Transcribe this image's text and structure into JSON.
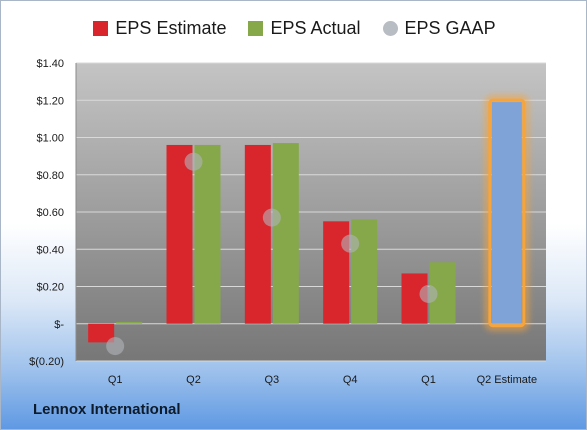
{
  "chart_data": {
    "type": "bar",
    "title": "",
    "xlabel": "",
    "ylabel": "",
    "categories": [
      "Q1",
      "Q2",
      "Q3",
      "Q4",
      "Q1",
      "Q2 Estimate"
    ],
    "ylim": [
      -0.2,
      1.4
    ],
    "yticks": [
      -0.2,
      0,
      0.2,
      0.4,
      0.6,
      0.8,
      1.0,
      1.2,
      1.4
    ],
    "ytick_labels": [
      "$(0.20)",
      "$-",
      "$0.20",
      "$0.40",
      "$0.60",
      "$0.80",
      "$1.00",
      "$1.20",
      "$1.40"
    ],
    "grid": true,
    "legend_position": "top",
    "series": [
      {
        "name": "EPS Estimate",
        "type": "bar",
        "color": "#d9262c",
        "values": [
          -0.1,
          0.96,
          0.96,
          0.55,
          0.27,
          null
        ]
      },
      {
        "name": "EPS Actual",
        "type": "bar",
        "color": "#86a84a",
        "values": [
          0.01,
          0.96,
          0.97,
          0.56,
          0.33,
          null
        ]
      },
      {
        "name": "EPS GAAP",
        "type": "scatter",
        "color": "#b0b4bb",
        "values": [
          -0.12,
          0.87,
          0.57,
          0.43,
          0.16,
          null
        ]
      },
      {
        "name": "Q2 Estimate",
        "type": "bar",
        "color": "#7fa3d6",
        "highlight": "#f7a43a",
        "values": [
          null,
          null,
          null,
          null,
          null,
          1.19
        ]
      }
    ]
  },
  "legend": [
    {
      "label": "EPS Estimate",
      "color": "#d9262c",
      "shape": "square"
    },
    {
      "label": "EPS Actual",
      "color": "#86a84a",
      "shape": "square"
    },
    {
      "label": "EPS GAAP",
      "color": "#b8bcc3",
      "shape": "circle"
    }
  ],
  "company": "Lennox International"
}
